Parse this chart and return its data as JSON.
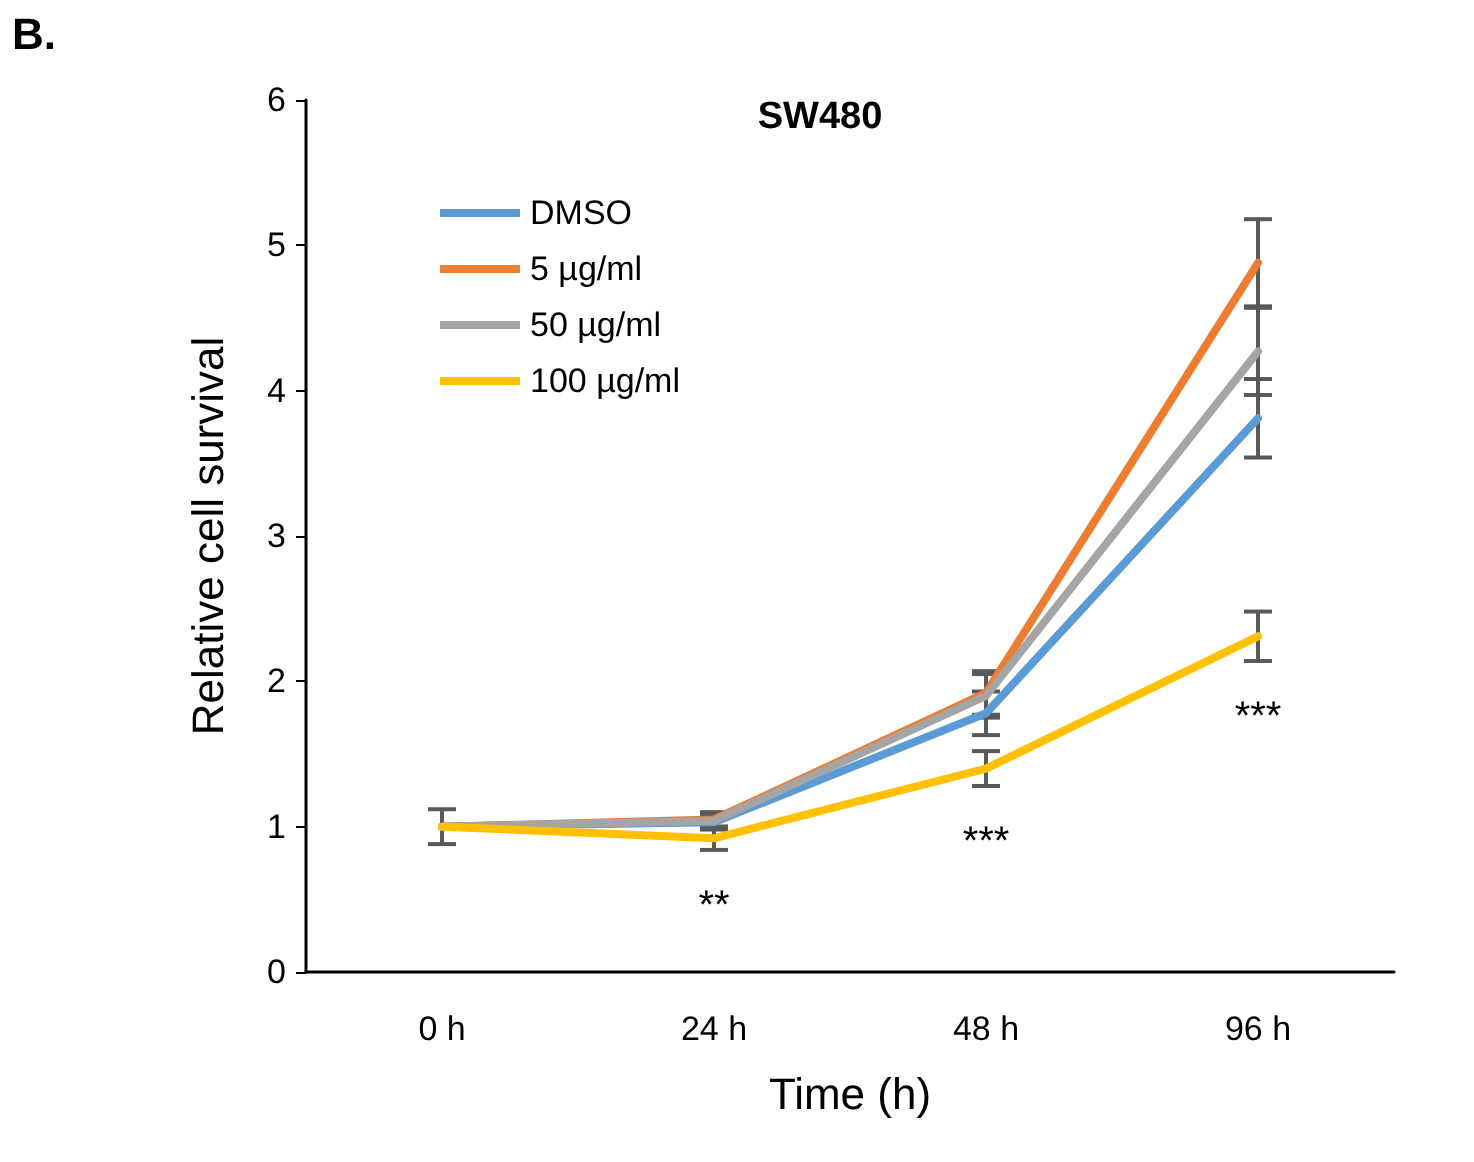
{
  "chart_data": {
    "type": "line",
    "title": "SW480",
    "xlabel": "Time (h)",
    "ylabel": "Relative cell survival",
    "categories": [
      "0 h",
      "24 h",
      "48 h",
      "96 h"
    ],
    "series": [
      {
        "name": "DMSO",
        "color": "#5b9bd5",
        "values": [
          1,
          1.03,
          1.78,
          3.81
        ],
        "errors": [
          null,
          0.05,
          0.15,
          0.27
        ]
      },
      {
        "name": "5 µg/ml",
        "color": "#ed7d31",
        "values": [
          1,
          1.05,
          1.92,
          4.88
        ],
        "errors": [
          null,
          0.05,
          0.15,
          0.3
        ]
      },
      {
        "name": "50 µg/ml",
        "color": "#a5a5a5",
        "values": [
          1,
          1.04,
          1.9,
          4.27
        ],
        "errors": [
          null,
          0.05,
          0.15,
          0.3
        ]
      },
      {
        "name": "100 µg/ml",
        "color": "#ffc000",
        "values": [
          1,
          0.92,
          1.4,
          2.31
        ],
        "errors": [
          0.12,
          0.08,
          0.12,
          0.17
        ]
      }
    ],
    "ylim": [
      0,
      6
    ],
    "yticks": [
      0,
      1,
      2,
      3,
      4,
      5,
      6
    ],
    "grid": false,
    "legend": "top left",
    "marker": "none",
    "line_style": "solid",
    "annotations": [
      "B.",
      "**",
      "***",
      "***"
    ]
  }
}
